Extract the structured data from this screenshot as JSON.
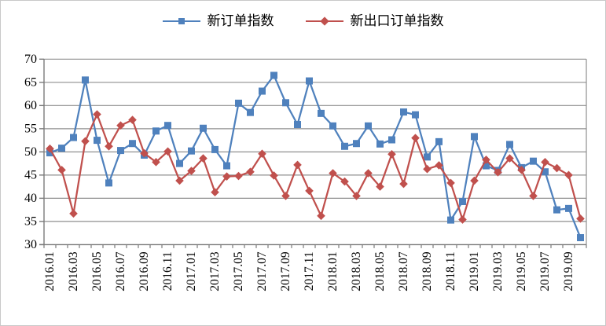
{
  "chart_data": {
    "type": "line",
    "title": "",
    "legend_position": "top",
    "grid": true,
    "categories": [
      "2016.01",
      "2016.02",
      "2016.03",
      "2016.04",
      "2016.05",
      "2016.06",
      "2016.07",
      "2016.08",
      "2016.09",
      "2016.10",
      "2016.11",
      "2016.12",
      "2017.01",
      "2017.02",
      "2017.03",
      "2017.04",
      "2017.05",
      "2017.06",
      "2017.07",
      "2017.08",
      "2017.09",
      "2017.10",
      "2017.11",
      "2017.12",
      "2018.01",
      "2018.02",
      "2018.03",
      "2018.04",
      "2018.05",
      "2018.06",
      "2018.07",
      "2018.08",
      "2018.09",
      "2018.10",
      "2018.11",
      "2018.12",
      "2019.01",
      "2019.02",
      "2019.03",
      "2019.04",
      "2019.05",
      "2019.06",
      "2019.07",
      "2019.08",
      "2019.09",
      "2019.10"
    ],
    "x_axis": {
      "tick_labels": [
        "2016.01",
        "2016.03",
        "2016.05",
        "2016.07",
        "2016.09",
        "2016.11",
        "2017.01",
        "2017.03",
        "2017.05",
        "2017.07",
        "2017.09",
        "2017.11",
        "2018.01",
        "2018.03",
        "2018.05",
        "2018.07",
        "2018.09",
        "2018.11",
        "2019.01",
        "2019.03",
        "2019.05",
        "2019.07",
        "2019.09"
      ],
      "label_every": 2
    },
    "y_axis": {
      "min": 30,
      "max": 70,
      "step": 5,
      "ticks": [
        70,
        65,
        60,
        55,
        50,
        45,
        40,
        35,
        30
      ]
    },
    "series": [
      {
        "name": "新订单指数",
        "marker": "square",
        "color": "#4F81BD",
        "values": [
          49.8,
          50.8,
          53.1,
          65.5,
          52.5,
          43.3,
          50.3,
          51.8,
          49.3,
          54.5,
          55.7,
          47.5,
          50.2,
          55.1,
          50.5,
          47.0,
          60.5,
          58.5,
          63.1,
          66.5,
          60.6,
          55.9,
          65.3,
          58.3,
          55.6,
          51.2,
          51.8,
          55.6,
          51.7,
          52.6,
          58.6,
          58.0,
          48.9,
          52.2,
          35.3,
          39.3,
          53.3,
          47.0,
          46.0,
          51.6,
          46.6,
          48.0,
          45.7,
          37.5,
          37.8,
          31.5
        ]
      },
      {
        "name": "新出口订单指数",
        "marker": "diamond",
        "color": "#C0504D",
        "values": [
          50.7,
          46.1,
          36.7,
          52.3,
          58.1,
          51.2,
          55.7,
          56.9,
          49.7,
          47.8,
          50.1,
          43.8,
          45.9,
          48.6,
          41.3,
          44.7,
          44.8,
          45.7,
          49.6,
          44.9,
          40.5,
          47.2,
          41.6,
          36.2,
          45.4,
          43.6,
          40.5,
          45.4,
          42.5,
          49.5,
          43.1,
          53.0,
          46.3,
          47.1,
          43.3,
          35.4,
          43.8,
          48.3,
          45.6,
          48.6,
          46.1,
          40.5,
          47.8,
          46.5,
          45.0,
          35.6
        ]
      }
    ],
    "colors": {
      "gridline": "#8f8f8f",
      "axis": "#7a7a7a",
      "tick_text": "#000000"
    }
  }
}
